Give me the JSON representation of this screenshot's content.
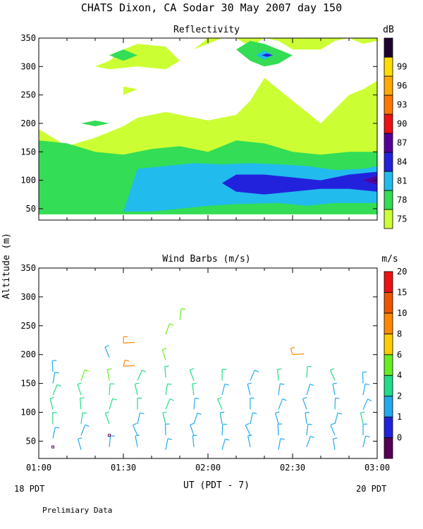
{
  "figure": {
    "title": "CHATS Dixon, CA  Sodar  30 May 2007  day 150",
    "xlabel": "UT  (PDT - 7)",
    "ylabel": "Altitude (m)",
    "left_note": "18 PDT",
    "right_note": "20 PDT",
    "footer": "Prelimiary Data"
  },
  "chart_data": [
    {
      "type": "heatmap",
      "title": "Reflectivity",
      "colorbar_unit": "dB",
      "x_ticks": [
        "01:00",
        "01:30",
        "02:00",
        "02:30",
        "03:00"
      ],
      "xlim": [
        "01:00",
        "03:00"
      ],
      "y_ticks": [
        50,
        100,
        150,
        200,
        250,
        300,
        350
      ],
      "ylim": [
        30,
        350
      ],
      "levels": [
        75,
        78,
        81,
        84,
        87,
        90,
        93,
        96,
        99
      ],
      "level_colors": [
        "#ccff33",
        "#33dd55",
        "#22bbee",
        "#2222dd",
        "#550099",
        "#ee1111",
        "#ff7700",
        "#ffaa00",
        "#ffdd00",
        "#220033"
      ],
      "regions": [
        {
          "level": 75,
          "x": [
            "01:00",
            "01:05",
            "01:10",
            "01:20",
            "01:30",
            "01:35",
            "01:45",
            "01:50",
            "02:00",
            "02:10",
            "02:15",
            "02:20",
            "02:30",
            "02:40",
            "02:50",
            "02:55",
            "03:00",
            "03:00",
            "02:50",
            "02:40",
            "02:30",
            "02:20",
            "02:05",
            "01:55",
            "01:50",
            "01:40",
            "01:30",
            "01:25",
            "01:15",
            "01:05",
            "01:00"
          ],
          "y": [
            190,
            175,
            160,
            175,
            195,
            210,
            220,
            215,
            205,
            215,
            240,
            280,
            240,
            200,
            250,
            260,
            275,
            40,
            40,
            40,
            40,
            40,
            40,
            40,
            40,
            40,
            40,
            40,
            40,
            40,
            40
          ]
        },
        {
          "level": 75,
          "x": [
            "01:55",
            "02:00",
            "02:10",
            "02:15",
            "02:20",
            "02:25",
            "02:30",
            "02:40",
            "02:45",
            "02:50",
            "02:55",
            "03:00",
            "03:00",
            "02:55",
            "02:45",
            "02:35",
            "02:25",
            "02:15",
            "02:10",
            "02:05"
          ],
          "y": [
            330,
            350,
            350,
            335,
            350,
            345,
            330,
            330,
            345,
            350,
            340,
            345,
            350,
            350,
            350,
            350,
            350,
            350,
            350,
            350
          ]
        },
        {
          "level": 75,
          "x": [
            "01:25",
            "01:30",
            "01:35",
            "01:45",
            "01:50",
            "01:45",
            "01:35",
            "01:25",
            "01:20"
          ],
          "y": [
            310,
            330,
            340,
            335,
            310,
            295,
            300,
            295,
            300
          ]
        },
        {
          "level": 75,
          "x": [
            "01:30",
            "01:35",
            "01:30"
          ],
          "y": [
            250,
            260,
            265
          ]
        },
        {
          "level": 78,
          "x": [
            "01:00",
            "01:10",
            "01:20",
            "01:30",
            "01:35",
            "01:40",
            "01:50",
            "02:00",
            "02:05",
            "02:10",
            "02:20",
            "02:30",
            "02:40",
            "02:50",
            "03:00",
            "03:00",
            "01:00"
          ],
          "y": [
            170,
            165,
            150,
            145,
            150,
            155,
            160,
            150,
            160,
            170,
            165,
            150,
            145,
            150,
            150,
            40,
            40
          ]
        },
        {
          "level": 78,
          "x": [
            "02:10",
            "02:15",
            "02:20",
            "02:25",
            "02:30",
            "02:25",
            "02:20",
            "02:15"
          ],
          "y": [
            330,
            345,
            340,
            330,
            320,
            305,
            300,
            310
          ]
        },
        {
          "level": 78,
          "x": [
            "01:25",
            "01:30",
            "01:35",
            "01:30"
          ],
          "y": [
            320,
            330,
            320,
            310
          ]
        },
        {
          "level": 78,
          "x": [
            "01:15",
            "01:20",
            "01:25",
            "01:20"
          ],
          "y": [
            200,
            205,
            200,
            195
          ]
        },
        {
          "level": 81,
          "x": [
            "01:35",
            "01:45",
            "01:55",
            "02:05",
            "02:15",
            "02:25",
            "02:35",
            "02:45",
            "02:55",
            "03:00",
            "03:00",
            "02:45",
            "02:35",
            "02:25",
            "02:10",
            "02:00",
            "01:50",
            "01:40",
            "01:30"
          ],
          "y": [
            120,
            125,
            130,
            128,
            130,
            128,
            125,
            118,
            120,
            125,
            60,
            60,
            55,
            60,
            58,
            55,
            50,
            45,
            45
          ]
        },
        {
          "level": 81,
          "x": [
            "02:17",
            "02:20",
            "02:23",
            "02:20"
          ],
          "y": [
            320,
            328,
            320,
            312
          ]
        },
        {
          "level": 84,
          "x": [
            "02:05",
            "02:10",
            "02:20",
            "02:30",
            "02:40",
            "02:50",
            "03:00",
            "03:00",
            "02:50",
            "02:40",
            "02:30",
            "02:20",
            "02:10"
          ],
          "y": [
            95,
            110,
            110,
            105,
            100,
            110,
            115,
            80,
            85,
            85,
            80,
            75,
            80
          ]
        },
        {
          "level": 84,
          "x": [
            "02:19",
            "02:21",
            "02:23",
            "02:21"
          ],
          "y": [
            320,
            323,
            320,
            317
          ]
        },
        {
          "level": 87,
          "x": [
            "02:55",
            "03:00",
            "03:00"
          ],
          "y": [
            100,
            108,
            92
          ]
        }
      ]
    },
    {
      "type": "scatter",
      "title": "Wind Barbs (m/s)",
      "colorbar_unit": "m/s",
      "x_ticks": [
        "01:00",
        "01:30",
        "02:00",
        "02:30",
        "03:00"
      ],
      "xlim": [
        "01:00",
        "03:00"
      ],
      "y_ticks": [
        50,
        100,
        150,
        200,
        250,
        300,
        350
      ],
      "ylim": [
        20,
        350
      ],
      "levels": [
        0,
        1,
        2,
        4,
        6,
        8,
        10,
        15,
        20
      ],
      "level_colors": [
        "#550055",
        "#2222dd",
        "#22aaee",
        "#22dd88",
        "#66ee22",
        "#ffcc00",
        "#ff8800",
        "#ee5500",
        "#ee1111"
      ],
      "barbs": [
        {
          "t": "01:05",
          "z": 40,
          "speed": 0.5
        },
        {
          "t": "01:05",
          "z": 55,
          "speed": 3
        },
        {
          "t": "01:05",
          "z": 80,
          "speed": 4
        },
        {
          "t": "01:05",
          "z": 105,
          "speed": 4
        },
        {
          "t": "01:05",
          "z": 130,
          "speed": 4
        },
        {
          "t": "01:05",
          "z": 150,
          "speed": 3
        },
        {
          "t": "01:05",
          "z": 170,
          "speed": 3
        },
        {
          "t": "01:15",
          "z": 35,
          "speed": 3
        },
        {
          "t": "01:15",
          "z": 60,
          "speed": 3
        },
        {
          "t": "01:15",
          "z": 80,
          "speed": 4
        },
        {
          "t": "01:15",
          "z": 105,
          "speed": 4
        },
        {
          "t": "01:15",
          "z": 130,
          "speed": 5
        },
        {
          "t": "01:15",
          "z": 155,
          "speed": 6
        },
        {
          "t": "01:25",
          "z": 40,
          "speed": 2
        },
        {
          "t": "01:25",
          "z": 60,
          "speed": 0.5
        },
        {
          "t": "01:25",
          "z": 80,
          "speed": 5
        },
        {
          "t": "01:25",
          "z": 105,
          "speed": 5
        },
        {
          "t": "01:25",
          "z": 130,
          "speed": 5
        },
        {
          "t": "01:25",
          "z": 155,
          "speed": 7
        },
        {
          "t": "01:25",
          "z": 195,
          "speed": 3
        },
        {
          "t": "01:30",
          "z": 180,
          "speed": 12
        },
        {
          "t": "01:30",
          "z": 220,
          "speed": 12
        },
        {
          "t": "01:35",
          "z": 40,
          "speed": 3
        },
        {
          "t": "01:35",
          "z": 60,
          "speed": 3
        },
        {
          "t": "01:35",
          "z": 80,
          "speed": 3
        },
        {
          "t": "01:35",
          "z": 105,
          "speed": 4
        },
        {
          "t": "01:35",
          "z": 130,
          "speed": 5
        },
        {
          "t": "01:35",
          "z": 155,
          "speed": 5
        },
        {
          "t": "01:45",
          "z": 35,
          "speed": 3
        },
        {
          "t": "01:45",
          "z": 60,
          "speed": 3
        },
        {
          "t": "01:45",
          "z": 80,
          "speed": 4
        },
        {
          "t": "01:45",
          "z": 105,
          "speed": 4
        },
        {
          "t": "01:45",
          "z": 130,
          "speed": 4
        },
        {
          "t": "01:45",
          "z": 160,
          "speed": 5
        },
        {
          "t": "01:45",
          "z": 190,
          "speed": 6
        },
        {
          "t": "01:45",
          "z": 235,
          "speed": 6
        },
        {
          "t": "01:50",
          "z": 260,
          "speed": 6
        },
        {
          "t": "01:55",
          "z": 40,
          "speed": 3
        },
        {
          "t": "01:55",
          "z": 60,
          "speed": 3
        },
        {
          "t": "01:55",
          "z": 80,
          "speed": 3
        },
        {
          "t": "01:55",
          "z": 105,
          "speed": 3
        },
        {
          "t": "01:55",
          "z": 130,
          "speed": 4
        },
        {
          "t": "01:55",
          "z": 155,
          "speed": 4
        },
        {
          "t": "02:05",
          "z": 35,
          "speed": 3
        },
        {
          "t": "02:05",
          "z": 60,
          "speed": 3
        },
        {
          "t": "02:05",
          "z": 80,
          "speed": 3
        },
        {
          "t": "02:05",
          "z": 105,
          "speed": 4
        },
        {
          "t": "02:05",
          "z": 130,
          "speed": 3
        },
        {
          "t": "02:05",
          "z": 155,
          "speed": 4
        },
        {
          "t": "02:15",
          "z": 40,
          "speed": 3
        },
        {
          "t": "02:15",
          "z": 60,
          "speed": 3
        },
        {
          "t": "02:15",
          "z": 80,
          "speed": 3
        },
        {
          "t": "02:15",
          "z": 105,
          "speed": 3
        },
        {
          "t": "02:15",
          "z": 130,
          "speed": 3
        },
        {
          "t": "02:15",
          "z": 155,
          "speed": 3
        },
        {
          "t": "02:25",
          "z": 35,
          "speed": 3
        },
        {
          "t": "02:25",
          "z": 60,
          "speed": 3
        },
        {
          "t": "02:25",
          "z": 80,
          "speed": 3
        },
        {
          "t": "02:25",
          "z": 105,
          "speed": 3
        },
        {
          "t": "02:25",
          "z": 130,
          "speed": 3
        },
        {
          "t": "02:25",
          "z": 155,
          "speed": 5
        },
        {
          "t": "02:30",
          "z": 200,
          "speed": 12
        },
        {
          "t": "02:35",
          "z": 40,
          "speed": 3
        },
        {
          "t": "02:35",
          "z": 60,
          "speed": 3
        },
        {
          "t": "02:35",
          "z": 80,
          "speed": 3
        },
        {
          "t": "02:35",
          "z": 105,
          "speed": 3
        },
        {
          "t": "02:35",
          "z": 130,
          "speed": 3
        },
        {
          "t": "02:35",
          "z": 160,
          "speed": 4
        },
        {
          "t": "02:45",
          "z": 35,
          "speed": 3
        },
        {
          "t": "02:45",
          "z": 60,
          "speed": 3
        },
        {
          "t": "02:45",
          "z": 80,
          "speed": 3
        },
        {
          "t": "02:45",
          "z": 105,
          "speed": 3
        },
        {
          "t": "02:45",
          "z": 130,
          "speed": 3
        },
        {
          "t": "02:45",
          "z": 155,
          "speed": 4
        },
        {
          "t": "02:55",
          "z": 40,
          "speed": 3
        },
        {
          "t": "02:55",
          "z": 60,
          "speed": 3
        },
        {
          "t": "02:55",
          "z": 80,
          "speed": 4
        },
        {
          "t": "02:55",
          "z": 105,
          "speed": 3
        },
        {
          "t": "02:55",
          "z": 130,
          "speed": 3
        },
        {
          "t": "02:55",
          "z": 150,
          "speed": 3
        }
      ]
    }
  ]
}
